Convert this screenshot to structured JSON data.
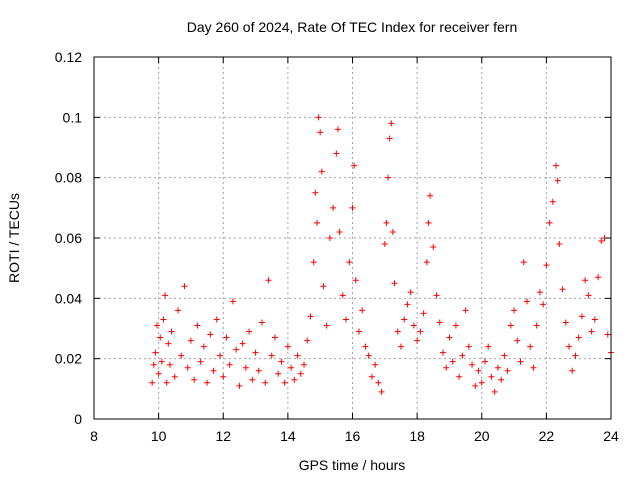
{
  "chart_data": {
    "type": "scatter",
    "title": "Day 260 of 2024, Rate Of TEC Index for receiver fern",
    "xlabel": "GPS time / hours",
    "ylabel": "ROTI / TECUs",
    "xlim": [
      8,
      24
    ],
    "ylim": [
      0,
      0.12
    ],
    "xticks": [
      8,
      10,
      12,
      14,
      16,
      18,
      20,
      22,
      24
    ],
    "xtick_labels": [
      "8",
      "10",
      "12",
      "14",
      "16",
      "18",
      "20",
      "22",
      "24"
    ],
    "yticks": [
      0,
      0.02,
      0.04,
      0.06,
      0.08,
      0.1,
      0.12
    ],
    "ytick_labels": [
      "0",
      "0.02",
      "0.04",
      "0.06",
      "0.08",
      "0.1",
      "0.12"
    ],
    "grid": true,
    "marker": "+",
    "color": "#ff0000",
    "series": [
      {
        "name": "ROTI",
        "points": [
          [
            9.8,
            0.012
          ],
          [
            9.85,
            0.018
          ],
          [
            9.9,
            0.022
          ],
          [
            9.95,
            0.031
          ],
          [
            10.0,
            0.015
          ],
          [
            10.05,
            0.027
          ],
          [
            10.1,
            0.019
          ],
          [
            10.15,
            0.033
          ],
          [
            10.2,
            0.041
          ],
          [
            10.25,
            0.012
          ],
          [
            10.3,
            0.025
          ],
          [
            10.35,
            0.018
          ],
          [
            10.4,
            0.029
          ],
          [
            10.5,
            0.014
          ],
          [
            10.6,
            0.036
          ],
          [
            10.7,
            0.021
          ],
          [
            10.8,
            0.044
          ],
          [
            10.9,
            0.017
          ],
          [
            11.0,
            0.026
          ],
          [
            11.1,
            0.013
          ],
          [
            11.2,
            0.031
          ],
          [
            11.3,
            0.019
          ],
          [
            11.4,
            0.024
          ],
          [
            11.5,
            0.012
          ],
          [
            11.6,
            0.028
          ],
          [
            11.7,
            0.016
          ],
          [
            11.8,
            0.033
          ],
          [
            11.9,
            0.021
          ],
          [
            12.0,
            0.014
          ],
          [
            12.1,
            0.027
          ],
          [
            12.2,
            0.018
          ],
          [
            12.3,
            0.039
          ],
          [
            12.4,
            0.023
          ],
          [
            12.5,
            0.011
          ],
          [
            12.6,
            0.025
          ],
          [
            12.7,
            0.017
          ],
          [
            12.8,
            0.029
          ],
          [
            12.9,
            0.013
          ],
          [
            13.0,
            0.022
          ],
          [
            13.1,
            0.016
          ],
          [
            13.2,
            0.032
          ],
          [
            13.3,
            0.012
          ],
          [
            13.4,
            0.046
          ],
          [
            13.5,
            0.021
          ],
          [
            13.6,
            0.027
          ],
          [
            13.7,
            0.015
          ],
          [
            13.8,
            0.019
          ],
          [
            13.9,
            0.012
          ],
          [
            14.0,
            0.024
          ],
          [
            14.1,
            0.017
          ],
          [
            14.2,
            0.013
          ],
          [
            14.3,
            0.021
          ],
          [
            14.4,
            0.015
          ],
          [
            14.5,
            0.018
          ],
          [
            14.6,
            0.026
          ],
          [
            14.7,
            0.034
          ],
          [
            14.8,
            0.052
          ],
          [
            14.85,
            0.075
          ],
          [
            14.9,
            0.065
          ],
          [
            14.95,
            0.1
          ],
          [
            15.0,
            0.095
          ],
          [
            15.05,
            0.082
          ],
          [
            15.1,
            0.044
          ],
          [
            15.2,
            0.031
          ],
          [
            15.3,
            0.06
          ],
          [
            15.4,
            0.07
          ],
          [
            15.5,
            0.088
          ],
          [
            15.55,
            0.096
          ],
          [
            15.6,
            0.062
          ],
          [
            15.7,
            0.041
          ],
          [
            15.8,
            0.033
          ],
          [
            15.9,
            0.052
          ],
          [
            16.0,
            0.07
          ],
          [
            16.05,
            0.084
          ],
          [
            16.1,
            0.046
          ],
          [
            16.2,
            0.029
          ],
          [
            16.3,
            0.036
          ],
          [
            16.4,
            0.024
          ],
          [
            16.5,
            0.021
          ],
          [
            16.6,
            0.014
          ],
          [
            16.7,
            0.018
          ],
          [
            16.8,
            0.012
          ],
          [
            16.9,
            0.009
          ],
          [
            17.0,
            0.058
          ],
          [
            17.05,
            0.065
          ],
          [
            17.1,
            0.08
          ],
          [
            17.15,
            0.093
          ],
          [
            17.2,
            0.098
          ],
          [
            17.25,
            0.062
          ],
          [
            17.3,
            0.045
          ],
          [
            17.4,
            0.029
          ],
          [
            17.5,
            0.024
          ],
          [
            17.6,
            0.033
          ],
          [
            17.7,
            0.038
          ],
          [
            17.8,
            0.042
          ],
          [
            17.9,
            0.031
          ],
          [
            18.0,
            0.026
          ],
          [
            18.1,
            0.029
          ],
          [
            18.2,
            0.035
          ],
          [
            18.3,
            0.052
          ],
          [
            18.35,
            0.065
          ],
          [
            18.4,
            0.074
          ],
          [
            18.5,
            0.057
          ],
          [
            18.6,
            0.041
          ],
          [
            18.7,
            0.032
          ],
          [
            18.8,
            0.022
          ],
          [
            18.9,
            0.017
          ],
          [
            19.0,
            0.027
          ],
          [
            19.1,
            0.019
          ],
          [
            19.2,
            0.031
          ],
          [
            19.3,
            0.014
          ],
          [
            19.4,
            0.021
          ],
          [
            19.5,
            0.036
          ],
          [
            19.6,
            0.024
          ],
          [
            19.7,
            0.018
          ],
          [
            19.8,
            0.011
          ],
          [
            19.9,
            0.016
          ],
          [
            20.0,
            0.012
          ],
          [
            20.1,
            0.019
          ],
          [
            20.2,
            0.024
          ],
          [
            20.3,
            0.014
          ],
          [
            20.4,
            0.009
          ],
          [
            20.5,
            0.017
          ],
          [
            20.6,
            0.013
          ],
          [
            20.7,
            0.021
          ],
          [
            20.8,
            0.016
          ],
          [
            20.9,
            0.031
          ],
          [
            21.0,
            0.036
          ],
          [
            21.1,
            0.026
          ],
          [
            21.2,
            0.019
          ],
          [
            21.3,
            0.052
          ],
          [
            21.4,
            0.039
          ],
          [
            21.5,
            0.024
          ],
          [
            21.6,
            0.017
          ],
          [
            21.7,
            0.031
          ],
          [
            21.8,
            0.042
          ],
          [
            21.9,
            0.038
          ],
          [
            22.0,
            0.051
          ],
          [
            22.1,
            0.065
          ],
          [
            22.2,
            0.072
          ],
          [
            22.3,
            0.084
          ],
          [
            22.35,
            0.079
          ],
          [
            22.4,
            0.058
          ],
          [
            22.5,
            0.043
          ],
          [
            22.6,
            0.032
          ],
          [
            22.7,
            0.024
          ],
          [
            22.8,
            0.016
          ],
          [
            22.9,
            0.021
          ],
          [
            23.0,
            0.027
          ],
          [
            23.1,
            0.034
          ],
          [
            23.2,
            0.046
          ],
          [
            23.3,
            0.041
          ],
          [
            23.4,
            0.029
          ],
          [
            23.5,
            0.033
          ],
          [
            23.6,
            0.047
          ],
          [
            23.7,
            0.059
          ],
          [
            23.8,
            0.06
          ],
          [
            23.9,
            0.028
          ],
          [
            24.0,
            0.022
          ]
        ]
      }
    ]
  }
}
